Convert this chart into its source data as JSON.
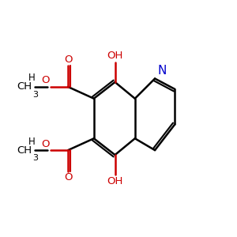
{
  "bg_color": "#ffffff",
  "bond_color": "#000000",
  "o_color": "#cc0000",
  "n_color": "#0000cc",
  "figsize": [
    3.0,
    3.0
  ],
  "dpi": 100,
  "xlim": [
    0,
    10
  ],
  "ylim": [
    0,
    10
  ],
  "lw": 1.8,
  "fs": 9.5
}
